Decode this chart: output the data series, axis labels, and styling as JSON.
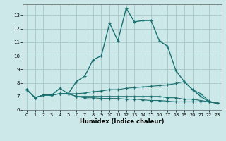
{
  "title": "",
  "xlabel": "Humidex (Indice chaleur)",
  "bg_color": "#cce8e8",
  "grid_color": "#aacccc",
  "line_color": "#1a7070",
  "xlim": [
    -0.5,
    23.5
  ],
  "ylim": [
    6.0,
    13.8
  ],
  "xticks": [
    0,
    1,
    2,
    3,
    4,
    5,
    6,
    7,
    8,
    9,
    10,
    11,
    12,
    13,
    14,
    15,
    16,
    17,
    18,
    19,
    20,
    21,
    22,
    23
  ],
  "yticks": [
    6,
    7,
    8,
    9,
    10,
    11,
    12,
    13
  ],
  "series": [
    {
      "x": [
        0,
        1,
        2,
        3,
        4,
        5,
        6,
        7,
        8,
        9,
        10,
        11,
        12,
        13,
        14,
        15,
        16,
        17,
        18,
        19,
        20,
        21,
        22,
        23
      ],
      "y": [
        7.5,
        6.9,
        7.1,
        7.1,
        7.6,
        7.2,
        8.1,
        8.5,
        9.7,
        10.0,
        12.4,
        11.1,
        13.5,
        12.5,
        12.6,
        12.6,
        11.1,
        10.7,
        8.9,
        8.1,
        7.5,
        7.0,
        6.6,
        6.5
      ],
      "linestyle": "-",
      "linewidth": 1.0
    },
    {
      "x": [
        0,
        1,
        2,
        3,
        4,
        5,
        6,
        7,
        8,
        9,
        10,
        11,
        12,
        13,
        14,
        15,
        16,
        17,
        18,
        19,
        20,
        21,
        22,
        23
      ],
      "y": [
        7.5,
        6.9,
        7.1,
        7.1,
        7.2,
        7.2,
        7.2,
        7.25,
        7.35,
        7.4,
        7.5,
        7.5,
        7.6,
        7.65,
        7.7,
        7.75,
        7.8,
        7.85,
        7.95,
        8.1,
        7.5,
        7.2,
        6.65,
        6.5
      ],
      "linestyle": "-",
      "linewidth": 0.8
    },
    {
      "x": [
        0,
        1,
        2,
        3,
        4,
        5,
        6,
        7,
        8,
        9,
        10,
        11,
        12,
        13,
        14,
        15,
        16,
        17,
        18,
        19,
        20,
        21,
        22,
        23
      ],
      "y": [
        7.5,
        6.9,
        7.1,
        7.1,
        7.2,
        7.2,
        7.0,
        7.0,
        7.0,
        7.0,
        7.0,
        7.0,
        7.0,
        7.0,
        7.0,
        7.0,
        7.0,
        6.9,
        6.9,
        6.8,
        6.8,
        6.7,
        6.6,
        6.5
      ],
      "linestyle": "-",
      "linewidth": 0.8
    },
    {
      "x": [
        0,
        1,
        2,
        3,
        4,
        5,
        6,
        7,
        8,
        9,
        10,
        11,
        12,
        13,
        14,
        15,
        16,
        17,
        18,
        19,
        20,
        21,
        22,
        23
      ],
      "y": [
        7.5,
        6.9,
        7.1,
        7.1,
        7.2,
        7.2,
        7.0,
        6.9,
        6.9,
        6.85,
        6.85,
        6.85,
        6.8,
        6.8,
        6.75,
        6.7,
        6.7,
        6.65,
        6.6,
        6.6,
        6.6,
        6.6,
        6.6,
        6.5
      ],
      "linestyle": "-",
      "linewidth": 0.8
    }
  ]
}
